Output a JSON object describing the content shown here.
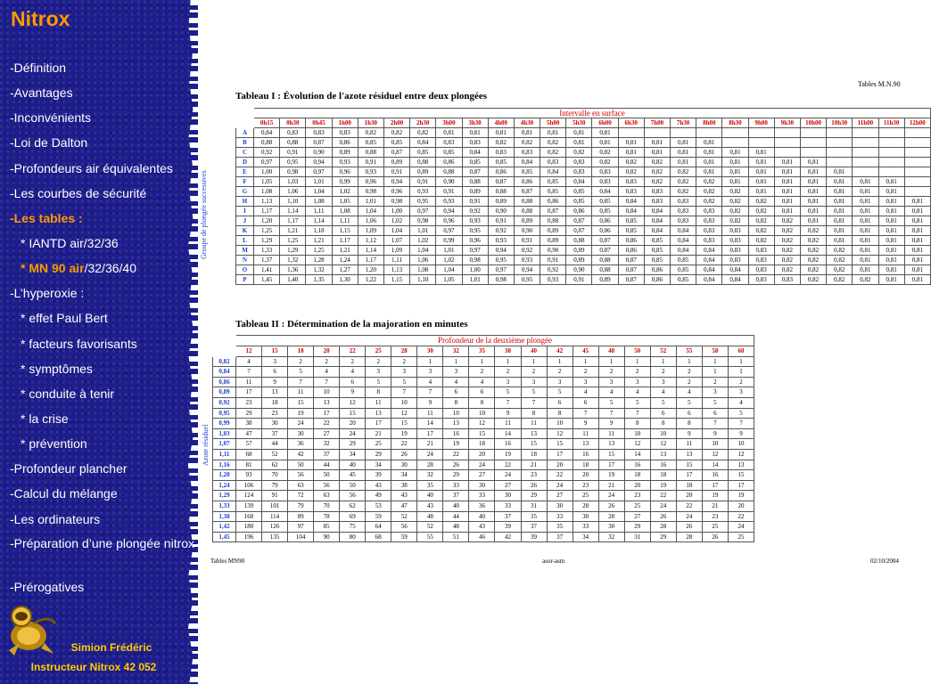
{
  "sidebar": {
    "title": "Nitrox",
    "items": [
      {
        "label": "-Définition"
      },
      {
        "label": "-Avantages"
      },
      {
        "label": "-Inconvénients"
      },
      {
        "label": "-Loi de Dalton"
      },
      {
        "label": "-Profondeurs air équivalentes"
      },
      {
        "label": "-Les courbes de sécurité"
      },
      {
        "label": "-Les tables :"
      },
      {
        "label": "* IANTD air/32/36"
      },
      {
        "label_prefix": "* MN 90 air",
        "label_suffix": "/32/36/40"
      },
      {
        "label": "-L’hyperoxie :"
      },
      {
        "label": "* effet Paul Bert"
      },
      {
        "label": "* facteurs favorisants"
      },
      {
        "label": "* symptômes"
      },
      {
        "label": "* conduite à tenir"
      },
      {
        "label": "* la crise"
      },
      {
        "label": "* prévention"
      },
      {
        "label": "-Profondeur plancher"
      },
      {
        "label": "-Calcul du mélange"
      },
      {
        "label": "-Les ordinateurs"
      },
      {
        "label": "-Préparation d’une plongée nitrox"
      },
      {
        "label": "-Prérogatives"
      }
    ],
    "author_name": "Simion Frédéric",
    "author_role": "Instructeur Nitrox 42 052"
  },
  "doc_ref": "Tables M.N.90",
  "table1": {
    "title": "Tableau I : Évolution de l'azote résiduel entre deux plongées",
    "caption": "Intervalle en surface",
    "vertical_label": "Groupe de plongée successives",
    "columns": [
      "0h15",
      "0h30",
      "0h45",
      "1h00",
      "1h30",
      "2h00",
      "2h30",
      "3h00",
      "3h30",
      "4h00",
      "4h30",
      "5h00",
      "5h30",
      "6h00",
      "6h30",
      "7h00",
      "7h30",
      "8h00",
      "8h30",
      "9h00",
      "9h30",
      "10h00",
      "10h30",
      "11h00",
      "11h30",
      "12h00"
    ],
    "rows": [
      {
        "g": "A",
        "v": [
          "0,84",
          "0,83",
          "0,83",
          "0,83",
          "0,82",
          "0,82",
          "0,82",
          "0,81",
          "0,81",
          "0,81",
          "0,81",
          "0,81",
          "0,81",
          "0,81"
        ]
      },
      {
        "g": "B",
        "v": [
          "0,88",
          "0,88",
          "0,87",
          "0,86",
          "0,85",
          "0,85",
          "0,84",
          "0,83",
          "0,83",
          "0,82",
          "0,82",
          "0,82",
          "0,81",
          "0,81",
          "0,81",
          "0,81",
          "0,81",
          "0,81"
        ]
      },
      {
        "g": "C",
        "v": [
          "0,92",
          "0,91",
          "0,90",
          "0,89",
          "0,88",
          "0,87",
          "0,85",
          "0,85",
          "0,84",
          "0,83",
          "0,83",
          "0,82",
          "0,82",
          "0,82",
          "0,81",
          "0,81",
          "0,81",
          "0,81",
          "0,81",
          "0,81"
        ]
      },
      {
        "g": "D",
        "v": [
          "0,97",
          "0,95",
          "0,94",
          "0,93",
          "0,91",
          "0,89",
          "0,88",
          "0,86",
          "0,85",
          "0,85",
          "0,84",
          "0,83",
          "0,83",
          "0,82",
          "0,82",
          "0,82",
          "0,81",
          "0,81",
          "0,81",
          "0,81",
          "0,81",
          "0,81"
        ]
      },
      {
        "g": "E",
        "v": [
          "1,00",
          "0,98",
          "0,97",
          "0,96",
          "0,93",
          "0,91",
          "0,89",
          "0,88",
          "0,87",
          "0,86",
          "0,85",
          "0,84",
          "0,83",
          "0,83",
          "0,82",
          "0,82",
          "0,82",
          "0,81",
          "0,81",
          "0,81",
          "0,81",
          "0,81",
          "0,81"
        ]
      },
      {
        "g": "F",
        "v": [
          "1,05",
          "1,03",
          "1,01",
          "0,99",
          "0,96",
          "0,94",
          "0,91",
          "0,90",
          "0,88",
          "0,87",
          "0,86",
          "0,85",
          "0,84",
          "0,83",
          "0,83",
          "0,82",
          "0,82",
          "0,82",
          "0,81",
          "0,81",
          "0,81",
          "0,81",
          "0,81",
          "0,81",
          "0,81"
        ]
      },
      {
        "g": "G",
        "v": [
          "1,08",
          "1,06",
          "1,04",
          "1,02",
          "0,98",
          "0,96",
          "0,93",
          "0,91",
          "0,89",
          "0,88",
          "0,87",
          "0,85",
          "0,85",
          "0,84",
          "0,83",
          "0,83",
          "0,82",
          "0,82",
          "0,82",
          "0,81",
          "0,81",
          "0,81",
          "0,81",
          "0,81",
          "0,81"
        ]
      },
      {
        "g": "H",
        "v": [
          "1,13",
          "1,10",
          "1,08",
          "1,05",
          "1,01",
          "0,98",
          "0,95",
          "0,93",
          "0,91",
          "0,89",
          "0,88",
          "0,86",
          "0,85",
          "0,85",
          "0,84",
          "0,83",
          "0,83",
          "0,82",
          "0,82",
          "0,82",
          "0,81",
          "0,81",
          "0,81",
          "0,81",
          "0,81",
          "0,81"
        ]
      },
      {
        "g": "I",
        "v": [
          "1,17",
          "1,14",
          "1,11",
          "1,08",
          "1,04",
          "1,00",
          "0,97",
          "0,94",
          "0,92",
          "0,90",
          "0,88",
          "0,87",
          "0,86",
          "0,85",
          "0,84",
          "0,84",
          "0,83",
          "0,83",
          "0,82",
          "0,82",
          "0,81",
          "0,81",
          "0,81",
          "0,81",
          "0,81",
          "0,81"
        ]
      },
      {
        "g": "J",
        "v": [
          "1,20",
          "1,17",
          "1,14",
          "1,11",
          "1,06",
          "1,02",
          "0,98",
          "0,96",
          "0,93",
          "0,91",
          "0,89",
          "0,88",
          "0,87",
          "0,86",
          "0,85",
          "0,84",
          "0,83",
          "0,83",
          "0,82",
          "0,82",
          "0,82",
          "0,81",
          "0,81",
          "0,81",
          "0,81",
          "0,81"
        ]
      },
      {
        "g": "K",
        "v": [
          "1,25",
          "1,21",
          "1,18",
          "1,15",
          "1,09",
          "1,04",
          "1,01",
          "0,97",
          "0,95",
          "0,92",
          "0,90",
          "0,89",
          "0,87",
          "0,86",
          "0,85",
          "0,84",
          "0,84",
          "0,83",
          "0,83",
          "0,82",
          "0,82",
          "0,82",
          "0,81",
          "0,81",
          "0,81",
          "0,81"
        ]
      },
      {
        "g": "L",
        "v": [
          "1,29",
          "1,25",
          "1,21",
          "1,17",
          "1,12",
          "1,07",
          "1,02",
          "0,99",
          "0,96",
          "0,93",
          "0,91",
          "0,89",
          "0,88",
          "0,87",
          "0,86",
          "0,85",
          "0,84",
          "0,83",
          "0,83",
          "0,82",
          "0,82",
          "0,82",
          "0,81",
          "0,81",
          "0,81",
          "0,81"
        ]
      },
      {
        "g": "M",
        "v": [
          "1,33",
          "1,29",
          "1,25",
          "1,21",
          "1,14",
          "1,09",
          "1,04",
          "1,01",
          "0,97",
          "0,94",
          "0,92",
          "0,90",
          "0,89",
          "0,87",
          "0,86",
          "0,85",
          "0,84",
          "0,84",
          "0,83",
          "0,83",
          "0,82",
          "0,82",
          "0,82",
          "0,81",
          "0,81",
          "0,81"
        ]
      },
      {
        "g": "N",
        "v": [
          "1,37",
          "1,32",
          "1,28",
          "1,24",
          "1,17",
          "1,11",
          "1,06",
          "1,02",
          "0,98",
          "0,95",
          "0,93",
          "0,91",
          "0,89",
          "0,88",
          "0,87",
          "0,85",
          "0,85",
          "0,84",
          "0,83",
          "0,83",
          "0,82",
          "0,82",
          "0,82",
          "0,81",
          "0,81",
          "0,81"
        ]
      },
      {
        "g": "O",
        "v": [
          "1,41",
          "1,36",
          "1,32",
          "1,27",
          "1,20",
          "1,13",
          "1,08",
          "1,04",
          "1,00",
          "0,97",
          "0,94",
          "0,92",
          "0,90",
          "0,88",
          "0,87",
          "0,86",
          "0,85",
          "0,84",
          "0,84",
          "0,83",
          "0,82",
          "0,82",
          "0,82",
          "0,81",
          "0,81",
          "0,81"
        ]
      },
      {
        "g": "P",
        "v": [
          "1,45",
          "1,40",
          "1,35",
          "1,30",
          "1,22",
          "1,15",
          "1,10",
          "1,05",
          "1,01",
          "0,98",
          "0,95",
          "0,93",
          "0,91",
          "0,89",
          "0,87",
          "0,86",
          "0,85",
          "0,84",
          "0,84",
          "0,83",
          "0,83",
          "0,82",
          "0,82",
          "0,82",
          "0,81",
          "0,81"
        ]
      }
    ]
  },
  "table2": {
    "title": "Tableau II : Détermination de la majoration en minutes",
    "caption": "Profondeur de la deuxième plongée",
    "vertical_label": "Azote résiduel",
    "columns": [
      "12",
      "15",
      "18",
      "20",
      "22",
      "25",
      "28",
      "30",
      "32",
      "35",
      "38",
      "40",
      "42",
      "45",
      "48",
      "50",
      "52",
      "55",
      "58",
      "60"
    ],
    "rows": [
      {
        "g": "0,82",
        "v": [
          "4",
          "3",
          "2",
          "2",
          "2",
          "2",
          "2",
          "1",
          "1",
          "1",
          "1",
          "1",
          "1",
          "1",
          "1",
          "1",
          "1",
          "1",
          "1",
          "1"
        ]
      },
      {
        "g": "0,84",
        "v": [
          "7",
          "6",
          "5",
          "4",
          "4",
          "3",
          "3",
          "3",
          "3",
          "2",
          "2",
          "2",
          "2",
          "2",
          "2",
          "2",
          "2",
          "2",
          "1",
          "1"
        ]
      },
      {
        "g": "0,86",
        "v": [
          "11",
          "9",
          "7",
          "7",
          "6",
          "5",
          "5",
          "4",
          "4",
          "4",
          "3",
          "3",
          "3",
          "3",
          "3",
          "3",
          "3",
          "2",
          "2",
          "2"
        ]
      },
      {
        "g": "0,89",
        "v": [
          "17",
          "13",
          "11",
          "10",
          "9",
          "8",
          "7",
          "7",
          "6",
          "6",
          "5",
          "5",
          "5",
          "4",
          "4",
          "4",
          "4",
          "4",
          "3",
          "3"
        ]
      },
      {
        "g": "0,92",
        "v": [
          "23",
          "18",
          "15",
          "13",
          "12",
          "11",
          "10",
          "9",
          "8",
          "8",
          "7",
          "7",
          "6",
          "6",
          "5",
          "5",
          "5",
          "5",
          "5",
          "4"
        ]
      },
      {
        "g": "0,95",
        "v": [
          "29",
          "23",
          "19",
          "17",
          "15",
          "13",
          "12",
          "11",
          "10",
          "10",
          "9",
          "8",
          "8",
          "7",
          "7",
          "7",
          "6",
          "6",
          "6",
          "5"
        ]
      },
      {
        "g": "0,99",
        "v": [
          "38",
          "30",
          "24",
          "22",
          "20",
          "17",
          "15",
          "14",
          "13",
          "12",
          "11",
          "11",
          "10",
          "9",
          "9",
          "8",
          "8",
          "8",
          "7",
          "7"
        ]
      },
      {
        "g": "1,03",
        "v": [
          "47",
          "37",
          "30",
          "27",
          "24",
          "21",
          "19",
          "17",
          "16",
          "15",
          "14",
          "13",
          "12",
          "11",
          "11",
          "10",
          "10",
          "9",
          "9",
          "9"
        ]
      },
      {
        "g": "1,07",
        "v": [
          "57",
          "44",
          "36",
          "32",
          "29",
          "25",
          "22",
          "21",
          "19",
          "18",
          "16",
          "15",
          "15",
          "13",
          "13",
          "12",
          "12",
          "11",
          "10",
          "10"
        ]
      },
      {
        "g": "1,11",
        "v": [
          "68",
          "52",
          "42",
          "37",
          "34",
          "29",
          "26",
          "24",
          "22",
          "20",
          "19",
          "18",
          "17",
          "16",
          "15",
          "14",
          "13",
          "13",
          "12",
          "12"
        ]
      },
      {
        "g": "1,16",
        "v": [
          "81",
          "62",
          "50",
          "44",
          "40",
          "34",
          "30",
          "28",
          "26",
          "24",
          "22",
          "21",
          "20",
          "18",
          "17",
          "16",
          "16",
          "15",
          "14",
          "13"
        ]
      },
      {
        "g": "1,20",
        "v": [
          "93",
          "70",
          "56",
          "50",
          "45",
          "39",
          "34",
          "32",
          "29",
          "27",
          "24",
          "23",
          "22",
          "20",
          "19",
          "18",
          "18",
          "17",
          "16",
          "15"
        ]
      },
      {
        "g": "1,24",
        "v": [
          "106",
          "79",
          "63",
          "56",
          "50",
          "43",
          "38",
          "35",
          "33",
          "30",
          "27",
          "26",
          "24",
          "23",
          "21",
          "20",
          "19",
          "18",
          "17",
          "17"
        ]
      },
      {
        "g": "1,29",
        "v": [
          "124",
          "91",
          "72",
          "63",
          "56",
          "49",
          "43",
          "40",
          "37",
          "33",
          "30",
          "29",
          "27",
          "25",
          "24",
          "23",
          "22",
          "20",
          "19",
          "19"
        ]
      },
      {
        "g": "1,33",
        "v": [
          "139",
          "101",
          "79",
          "70",
          "62",
          "53",
          "47",
          "43",
          "40",
          "36",
          "33",
          "31",
          "30",
          "28",
          "26",
          "25",
          "24",
          "22",
          "21",
          "20"
        ]
      },
      {
        "g": "1,38",
        "v": [
          "160",
          "114",
          "89",
          "78",
          "69",
          "59",
          "52",
          "48",
          "44",
          "40",
          "37",
          "35",
          "33",
          "30",
          "28",
          "27",
          "26",
          "24",
          "23",
          "22"
        ]
      },
      {
        "g": "1,42",
        "v": [
          "180",
          "126",
          "97",
          "85",
          "75",
          "64",
          "56",
          "52",
          "48",
          "43",
          "39",
          "37",
          "35",
          "33",
          "30",
          "29",
          "28",
          "26",
          "25",
          "24"
        ]
      },
      {
        "g": "1,45",
        "v": [
          "196",
          "135",
          "104",
          "90",
          "80",
          "68",
          "59",
          "55",
          "51",
          "46",
          "42",
          "39",
          "37",
          "34",
          "32",
          "31",
          "29",
          "28",
          "26",
          "25"
        ]
      }
    ]
  },
  "footer": {
    "left": "Tables MN90",
    "center": "asor-asm",
    "right": "02/10/2004"
  }
}
